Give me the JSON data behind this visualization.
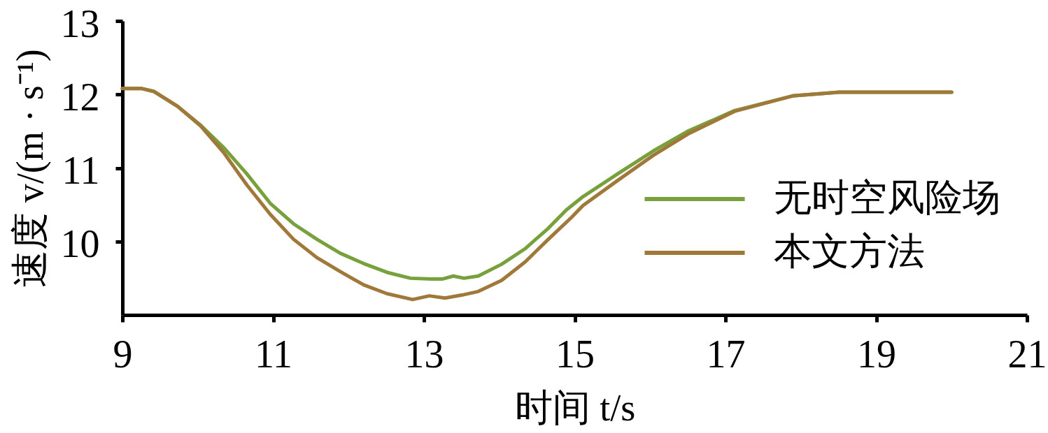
{
  "chart_data": {
    "type": "line",
    "xlabel": "时间 t/s",
    "ylabel": "速度 v/(m · s⁻¹)",
    "xlim": [
      9,
      21
    ],
    "xticks": [
      9,
      11,
      13,
      15,
      17,
      19,
      21
    ],
    "ylim": [
      9,
      13
    ],
    "yticks": [
      10,
      11,
      12,
      13
    ],
    "grid": false,
    "legend": "bottom right",
    "line_style": "solid",
    "series": [
      {
        "name": "无时空风险场",
        "color": "#78a03c",
        "x": [
          9.0,
          9.26,
          9.42,
          9.73,
          10.04,
          10.35,
          10.65,
          10.96,
          11.27,
          11.58,
          11.89,
          12.2,
          12.51,
          12.82,
          13.1,
          13.25,
          13.39,
          13.53,
          13.72,
          14.03,
          14.34,
          14.65,
          14.89,
          15.11,
          15.57,
          16.04,
          16.5,
          17.12,
          17.89,
          18.51,
          19.13,
          20.0
        ],
        "values": [
          12.08,
          12.08,
          12.04,
          11.84,
          11.58,
          11.27,
          10.92,
          10.52,
          10.24,
          10.03,
          9.84,
          9.7,
          9.58,
          9.5,
          9.49,
          9.49,
          9.53,
          9.5,
          9.53,
          9.69,
          9.9,
          10.18,
          10.43,
          10.61,
          10.92,
          11.23,
          11.5,
          11.78,
          11.98,
          12.03,
          12.03,
          12.03
        ]
      },
      {
        "name": "本文方法",
        "color": "#a0783a",
        "x": [
          9.0,
          9.26,
          9.42,
          9.73,
          10.04,
          10.35,
          10.65,
          10.96,
          11.27,
          11.58,
          11.89,
          12.2,
          12.51,
          12.85,
          13.07,
          13.28,
          13.5,
          13.72,
          14.03,
          14.34,
          14.65,
          14.96,
          15.11,
          15.57,
          16.04,
          16.5,
          17.12,
          17.89,
          18.51,
          19.13,
          20.0
        ],
        "values": [
          12.08,
          12.08,
          12.04,
          11.84,
          11.57,
          11.2,
          10.77,
          10.37,
          10.03,
          9.78,
          9.59,
          9.41,
          9.29,
          9.21,
          9.26,
          9.23,
          9.27,
          9.32,
          9.47,
          9.72,
          10.03,
          10.33,
          10.49,
          10.83,
          11.17,
          11.46,
          11.77,
          11.98,
          12.03,
          12.03,
          12.03
        ]
      }
    ]
  }
}
